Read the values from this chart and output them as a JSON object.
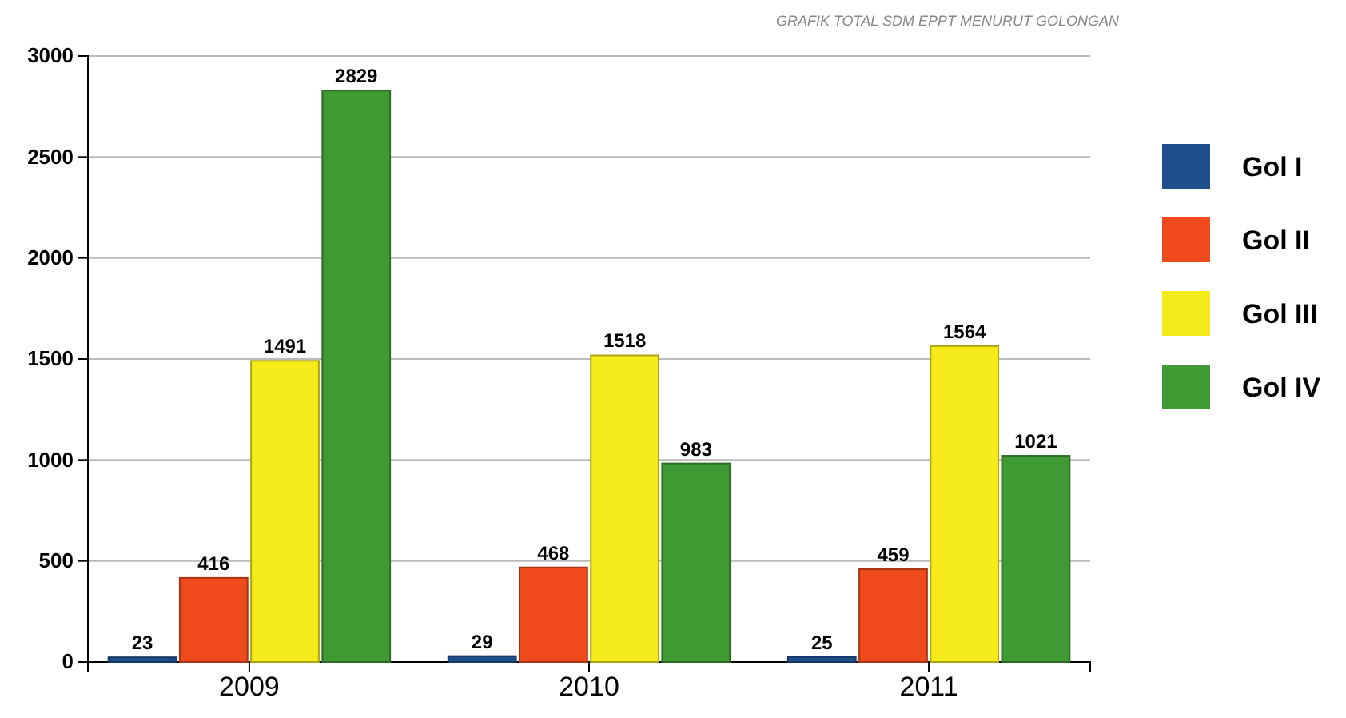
{
  "chart_data": {
    "type": "bar",
    "title": "GRAFIK TOTAL SDM EPPT MENURUT GOLONGAN",
    "categories": [
      "2009",
      "2010",
      "2011"
    ],
    "series": [
      {
        "name": "Gol I",
        "color": "#1f4e8c",
        "values": [
          23,
          29,
          25
        ]
      },
      {
        "name": "Gol II",
        "color": "#ee4a1c",
        "values": [
          416,
          468,
          459
        ]
      },
      {
        "name": "Gol III",
        "color": "#f5ea1a",
        "values": [
          1491,
          1518,
          1564
        ]
      },
      {
        "name": "Gol IV",
        "color": "#3f9a34",
        "values": [
          2829,
          983,
          1021
        ]
      }
    ],
    "ylim": [
      0,
      3000
    ],
    "yticks": [
      0,
      500,
      1000,
      1500,
      2000,
      2500,
      3000
    ],
    "grid": "y",
    "legend": "right",
    "data_labels": true
  }
}
